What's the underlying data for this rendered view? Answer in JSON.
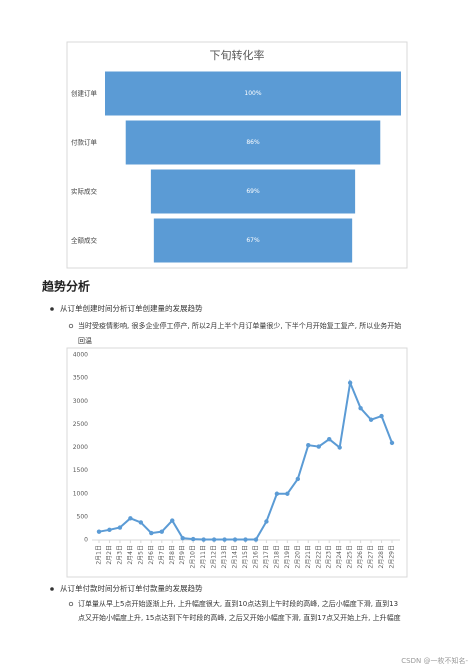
{
  "document": {
    "heading": "趋势分析",
    "bullet1": "从订单创建时间分析订单创建量的发展趋势",
    "sub1": [
      "当时受疫情影响, 很多企业停工停产, 所以2月上半个月订单量很少, 下半个月开始复工复产, 所以业务开始",
      "回温"
    ],
    "bullet2": "从订单付款时间分析订单付款量的发展趋势",
    "sub2": [
      "订单量从早上5点开始逐渐上升, 上升幅度很大, 直到10点达到上午时段的高峰, 之后小幅度下滑, 直到13",
      "点又开始小幅度上升, 15点达到下午时段的高峰, 之后又开始小幅度下滑, 直到17点又开始上升, 上升幅度"
    ],
    "watermark": "CSDN @一枚不知名-"
  },
  "chart_data": [
    {
      "type": "funnel",
      "title": "下旬转化率",
      "categories": [
        "创建订单",
        "付款订单",
        "实际成交",
        "全额成交"
      ],
      "values": [
        100,
        86,
        69,
        67
      ],
      "value_labels": [
        "100%",
        "86%",
        "69%",
        "67%"
      ],
      "color": "#5b9bd5"
    },
    {
      "type": "line",
      "categories": [
        "2月1日",
        "2月2日",
        "2月3日",
        "2月4日",
        "2月5日",
        "2月6日",
        "2月7日",
        "2月8日",
        "2月9日",
        "2月10日",
        "2月11日",
        "2月12日",
        "2月13日",
        "2月14日",
        "2月15日",
        "2月16日",
        "2月17日",
        "2月18日",
        "2月19日",
        "2月20日",
        "2月21日",
        "2月22日",
        "2月23日",
        "2月24日",
        "2月25日",
        "2月26日",
        "2月27日",
        "2月28日",
        "2月29日"
      ],
      "values": [
        180,
        220,
        270,
        470,
        380,
        150,
        180,
        420,
        40,
        20,
        10,
        10,
        10,
        10,
        10,
        10,
        400,
        1000,
        1000,
        1320,
        2050,
        2020,
        2180,
        2000,
        3400,
        2850,
        2600,
        2680,
        2100
      ],
      "color": "#5b9bd5",
      "ylim": [
        0,
        4000
      ],
      "yticks": [
        0,
        500,
        1000,
        1500,
        2000,
        2500,
        3000,
        3500,
        4000
      ]
    }
  ]
}
